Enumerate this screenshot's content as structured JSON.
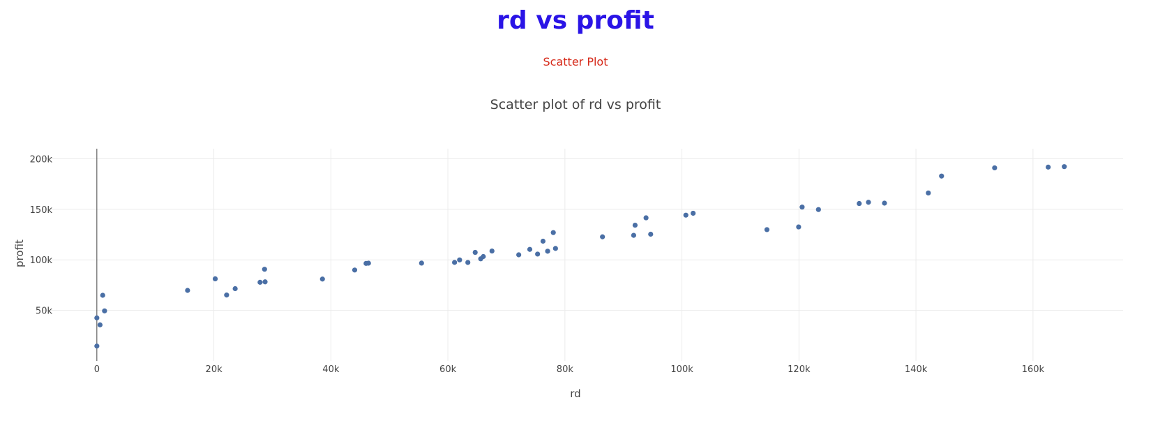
{
  "header": {
    "title": "rd vs profit",
    "subtitle": "Scatter Plot"
  },
  "colors": {
    "title": "#2a14e6",
    "subtitle": "#d62a1a",
    "points": "#4a6fa5"
  },
  "chart_data": {
    "type": "scatter",
    "title": "Scatter plot of rd vs profit",
    "xlabel": "rd",
    "ylabel": "profit",
    "xlim": [
      -9400,
      175400
    ],
    "ylim": [
      0,
      210000
    ],
    "x_ticks": [
      0,
      20000,
      40000,
      60000,
      80000,
      100000,
      120000,
      140000,
      160000
    ],
    "x_tick_labels": [
      "0",
      "20k",
      "40k",
      "60k",
      "80k",
      "100k",
      "120k",
      "140k",
      "160k"
    ],
    "y_ticks": [
      50000,
      100000,
      150000,
      200000
    ],
    "y_tick_labels": [
      "50k",
      "100k",
      "150k",
      "200k"
    ],
    "grid": true,
    "x": [
      0,
      0,
      542,
      1000,
      1315,
      15506,
      20230,
      22178,
      23641,
      27893,
      28664,
      28754,
      38558,
      44070,
      46014,
      46426,
      55494,
      61137,
      61995,
      63409,
      64665,
      65606,
      66052,
      67533,
      72108,
      73995,
      75328,
      76254,
      77044,
      78014,
      78390,
      86419,
      91749,
      91992,
      93864,
      94657,
      100672,
      101913,
      114524,
      119944,
      120543,
      123335,
      130298,
      131877,
      134615,
      142108,
      144372,
      153442,
      162598,
      165349
    ],
    "y": [
      14681,
      42560,
      35673,
      64926,
      49491,
      69759,
      81229,
      65200,
      71498,
      77798,
      90708,
      78240,
      81005,
      89949,
      96479,
      96712,
      96778,
      97483,
      99937,
      97427,
      107404,
      101004,
      103282,
      108734,
      105008,
      110352,
      105734,
      118474,
      108552,
      126993,
      111313,
      122777,
      124267,
      134307,
      141586,
      125370,
      144259,
      146122,
      129917,
      132603,
      152212,
      149760,
      155753,
      156991,
      156123,
      166188,
      182902,
      191050,
      191792,
      192262
    ]
  }
}
